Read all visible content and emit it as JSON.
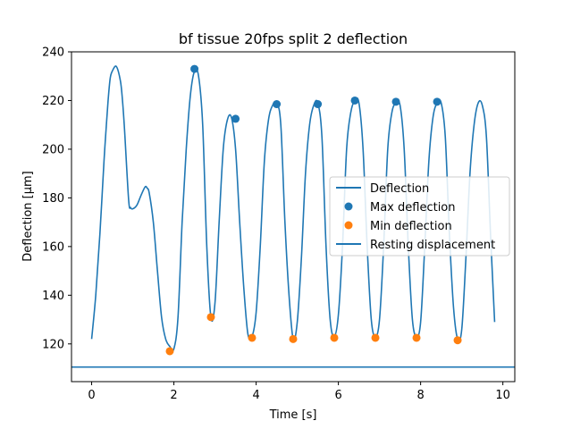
{
  "chart_data": {
    "type": "line",
    "title": "bf tissue 20fps split 2 deflection",
    "xlabel": "Time [s]",
    "ylabel": "Deflection [μm]",
    "xlim": [
      -0.49,
      10.29
    ],
    "ylim": [
      104.5,
      240
    ],
    "xticks": [
      0,
      2,
      4,
      6,
      8,
      10
    ],
    "yticks": [
      120,
      140,
      160,
      180,
      200,
      220,
      240
    ],
    "grid": false,
    "legend_position": "center-right",
    "colors": {
      "line": "#1f77b4",
      "max": "#1f77b4",
      "min": "#ff7f0e",
      "resting": "#1f77b4"
    },
    "series": [
      {
        "name": "Deflection",
        "kind": "line",
        "x": [
          0.0,
          0.1,
          0.2,
          0.3,
          0.35,
          0.4,
          0.45,
          0.5,
          0.6,
          0.7,
          0.75,
          0.8,
          0.9,
          0.95,
          1.0,
          1.1,
          1.2,
          1.3,
          1.35,
          1.4,
          1.5,
          1.6,
          1.7,
          1.8,
          1.9,
          2.0,
          2.1,
          2.2,
          2.3,
          2.4,
          2.5,
          2.6,
          2.7,
          2.8,
          2.9,
          3.0,
          3.1,
          3.2,
          3.3,
          3.4,
          3.5,
          3.6,
          3.7,
          3.8,
          3.9,
          4.0,
          4.1,
          4.2,
          4.3,
          4.4,
          4.5,
          4.6,
          4.7,
          4.8,
          4.9,
          5.0,
          5.1,
          5.2,
          5.3,
          5.4,
          5.5,
          5.6,
          5.7,
          5.8,
          5.9,
          6.0,
          6.1,
          6.2,
          6.3,
          6.4,
          6.5,
          6.6,
          6.7,
          6.8,
          6.9,
          7.0,
          7.1,
          7.2,
          7.3,
          7.4,
          7.5,
          7.6,
          7.7,
          7.8,
          7.9,
          8.0,
          8.1,
          8.2,
          8.3,
          8.4,
          8.5,
          8.6,
          8.7,
          8.8,
          8.9,
          9.0,
          9.1,
          9.2,
          9.3,
          9.4,
          9.5,
          9.6,
          9.7,
          9.8
        ],
        "y": [
          122,
          140,
          165,
          195,
          208,
          220,
          229,
          232,
          234,
          228,
          220,
          208,
          179,
          176,
          175.5,
          177,
          181,
          184.5,
          184,
          182,
          170,
          150,
          131,
          122,
          119,
          118,
          131,
          170,
          200,
          222,
          232,
          230,
          210,
          160,
          131,
          137,
          170,
          200,
          212,
          213,
          200,
          170,
          143,
          124,
          123,
          133,
          160,
          195,
          212,
          218,
          219,
          210,
          170,
          140,
          122,
          129,
          155,
          190,
          210,
          218,
          219,
          205,
          160,
          130,
          123,
          132,
          160,
          200,
          215,
          220,
          219,
          200,
          160,
          130,
          123,
          130,
          160,
          200,
          215,
          219,
          218,
          200,
          160,
          130,
          123,
          129,
          160,
          195,
          213,
          219,
          219,
          205,
          165,
          135,
          122,
          126,
          155,
          190,
          210,
          219,
          218,
          205,
          165,
          129
        ]
      },
      {
        "name": "Max deflection",
        "kind": "scatter",
        "x": [
          2.5,
          3.5,
          4.5,
          5.5,
          6.4,
          7.4,
          8.4
        ],
        "y": [
          233,
          212.5,
          218.5,
          218.5,
          220,
          219.5,
          219.5
        ]
      },
      {
        "name": "Min deflection",
        "kind": "scatter",
        "x": [
          1.9,
          2.9,
          3.9,
          4.9,
          5.9,
          6.9,
          7.9,
          8.9
        ],
        "y": [
          117,
          131,
          122.5,
          122,
          122.5,
          122.5,
          122.5,
          121.5
        ]
      },
      {
        "name": "Resting displacement",
        "kind": "hline",
        "y": 110.5
      }
    ]
  }
}
